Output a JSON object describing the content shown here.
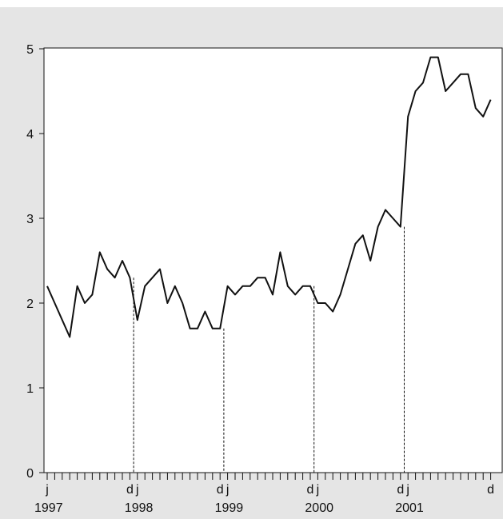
{
  "chart_data": {
    "type": "line",
    "title": "",
    "xlabel": "",
    "ylabel": "",
    "ylim": [
      0,
      5
    ],
    "x_range": [
      "1997-01",
      "2001-12"
    ],
    "yticks": [
      {
        "value": 0,
        "label": "0"
      },
      {
        "value": 1,
        "label": "1"
      },
      {
        "value": 2,
        "label": "2"
      },
      {
        "value": 3,
        "label": "3"
      },
      {
        "value": 4,
        "label": "4"
      },
      {
        "value": 5,
        "label": "5"
      }
    ],
    "month_labels": [
      {
        "month": "1997-01",
        "label": "j"
      },
      {
        "month": "1997-12",
        "label": "d"
      },
      {
        "month": "1998-01",
        "label": "j"
      },
      {
        "month": "1998-12",
        "label": "d"
      },
      {
        "month": "1999-01",
        "label": "j"
      },
      {
        "month": "1999-12",
        "label": "d"
      },
      {
        "month": "2000-01",
        "label": "j"
      },
      {
        "month": "2000-12",
        "label": "d"
      },
      {
        "month": "2001-01",
        "label": "j"
      },
      {
        "month": "2001-12",
        "label": "d"
      }
    ],
    "year_labels": [
      {
        "month": "1997-01",
        "label": "1997"
      },
      {
        "month": "1998-01",
        "label": "1998"
      },
      {
        "month": "1999-01",
        "label": "1999"
      },
      {
        "month": "2000-01",
        "label": "2000"
      },
      {
        "month": "2001-01",
        "label": "2001"
      }
    ],
    "reference_lines": [
      "1997-12",
      "1998-12",
      "1999-12",
      "2000-12"
    ],
    "grid": false,
    "legend": "none",
    "colors": {
      "line": "#111111",
      "background": "#e5e5e5",
      "plot": "#ffffff"
    },
    "series": [
      {
        "x": [
          "1997-01",
          "1997-02",
          "1997-03",
          "1997-04",
          "1997-05",
          "1997-06",
          "1997-07",
          "1997-08",
          "1997-09",
          "1997-10",
          "1997-11",
          "1997-12",
          "1998-01",
          "1998-02",
          "1998-03",
          "1998-04",
          "1998-05",
          "1998-06",
          "1998-07",
          "1998-08",
          "1998-09",
          "1998-10",
          "1998-11",
          "1998-12",
          "1999-01",
          "1999-02",
          "1999-03",
          "1999-04",
          "1999-05",
          "1999-06",
          "1999-07",
          "1999-08",
          "1999-09",
          "1999-10",
          "1999-11",
          "1999-12",
          "2000-01",
          "2000-02",
          "2000-03",
          "2000-04",
          "2000-05",
          "2000-06",
          "2000-07",
          "2000-08",
          "2000-09",
          "2000-10",
          "2000-11",
          "2000-12",
          "2001-01",
          "2001-02",
          "2001-03",
          "2001-04",
          "2001-05",
          "2001-06",
          "2001-07",
          "2001-08",
          "2001-09",
          "2001-10",
          "2001-11",
          "2001-12"
        ],
        "values": [
          2.2,
          2.0,
          1.8,
          1.6,
          2.2,
          2.0,
          2.1,
          2.6,
          2.4,
          2.3,
          2.5,
          2.3,
          1.8,
          2.2,
          2.3,
          2.4,
          2.0,
          2.2,
          2.0,
          1.7,
          1.7,
          1.9,
          1.7,
          1.7,
          2.2,
          2.1,
          2.2,
          2.2,
          2.3,
          2.3,
          2.1,
          2.6,
          2.2,
          2.1,
          2.2,
          2.2,
          2.0,
          2.0,
          1.9,
          2.1,
          2.4,
          2.7,
          2.8,
          2.5,
          2.9,
          3.1,
          3.0,
          2.9,
          4.2,
          4.5,
          4.6,
          4.9,
          4.9,
          4.5,
          4.6,
          4.7,
          4.7,
          4.3,
          4.2,
          4.4
        ]
      }
    ]
  }
}
